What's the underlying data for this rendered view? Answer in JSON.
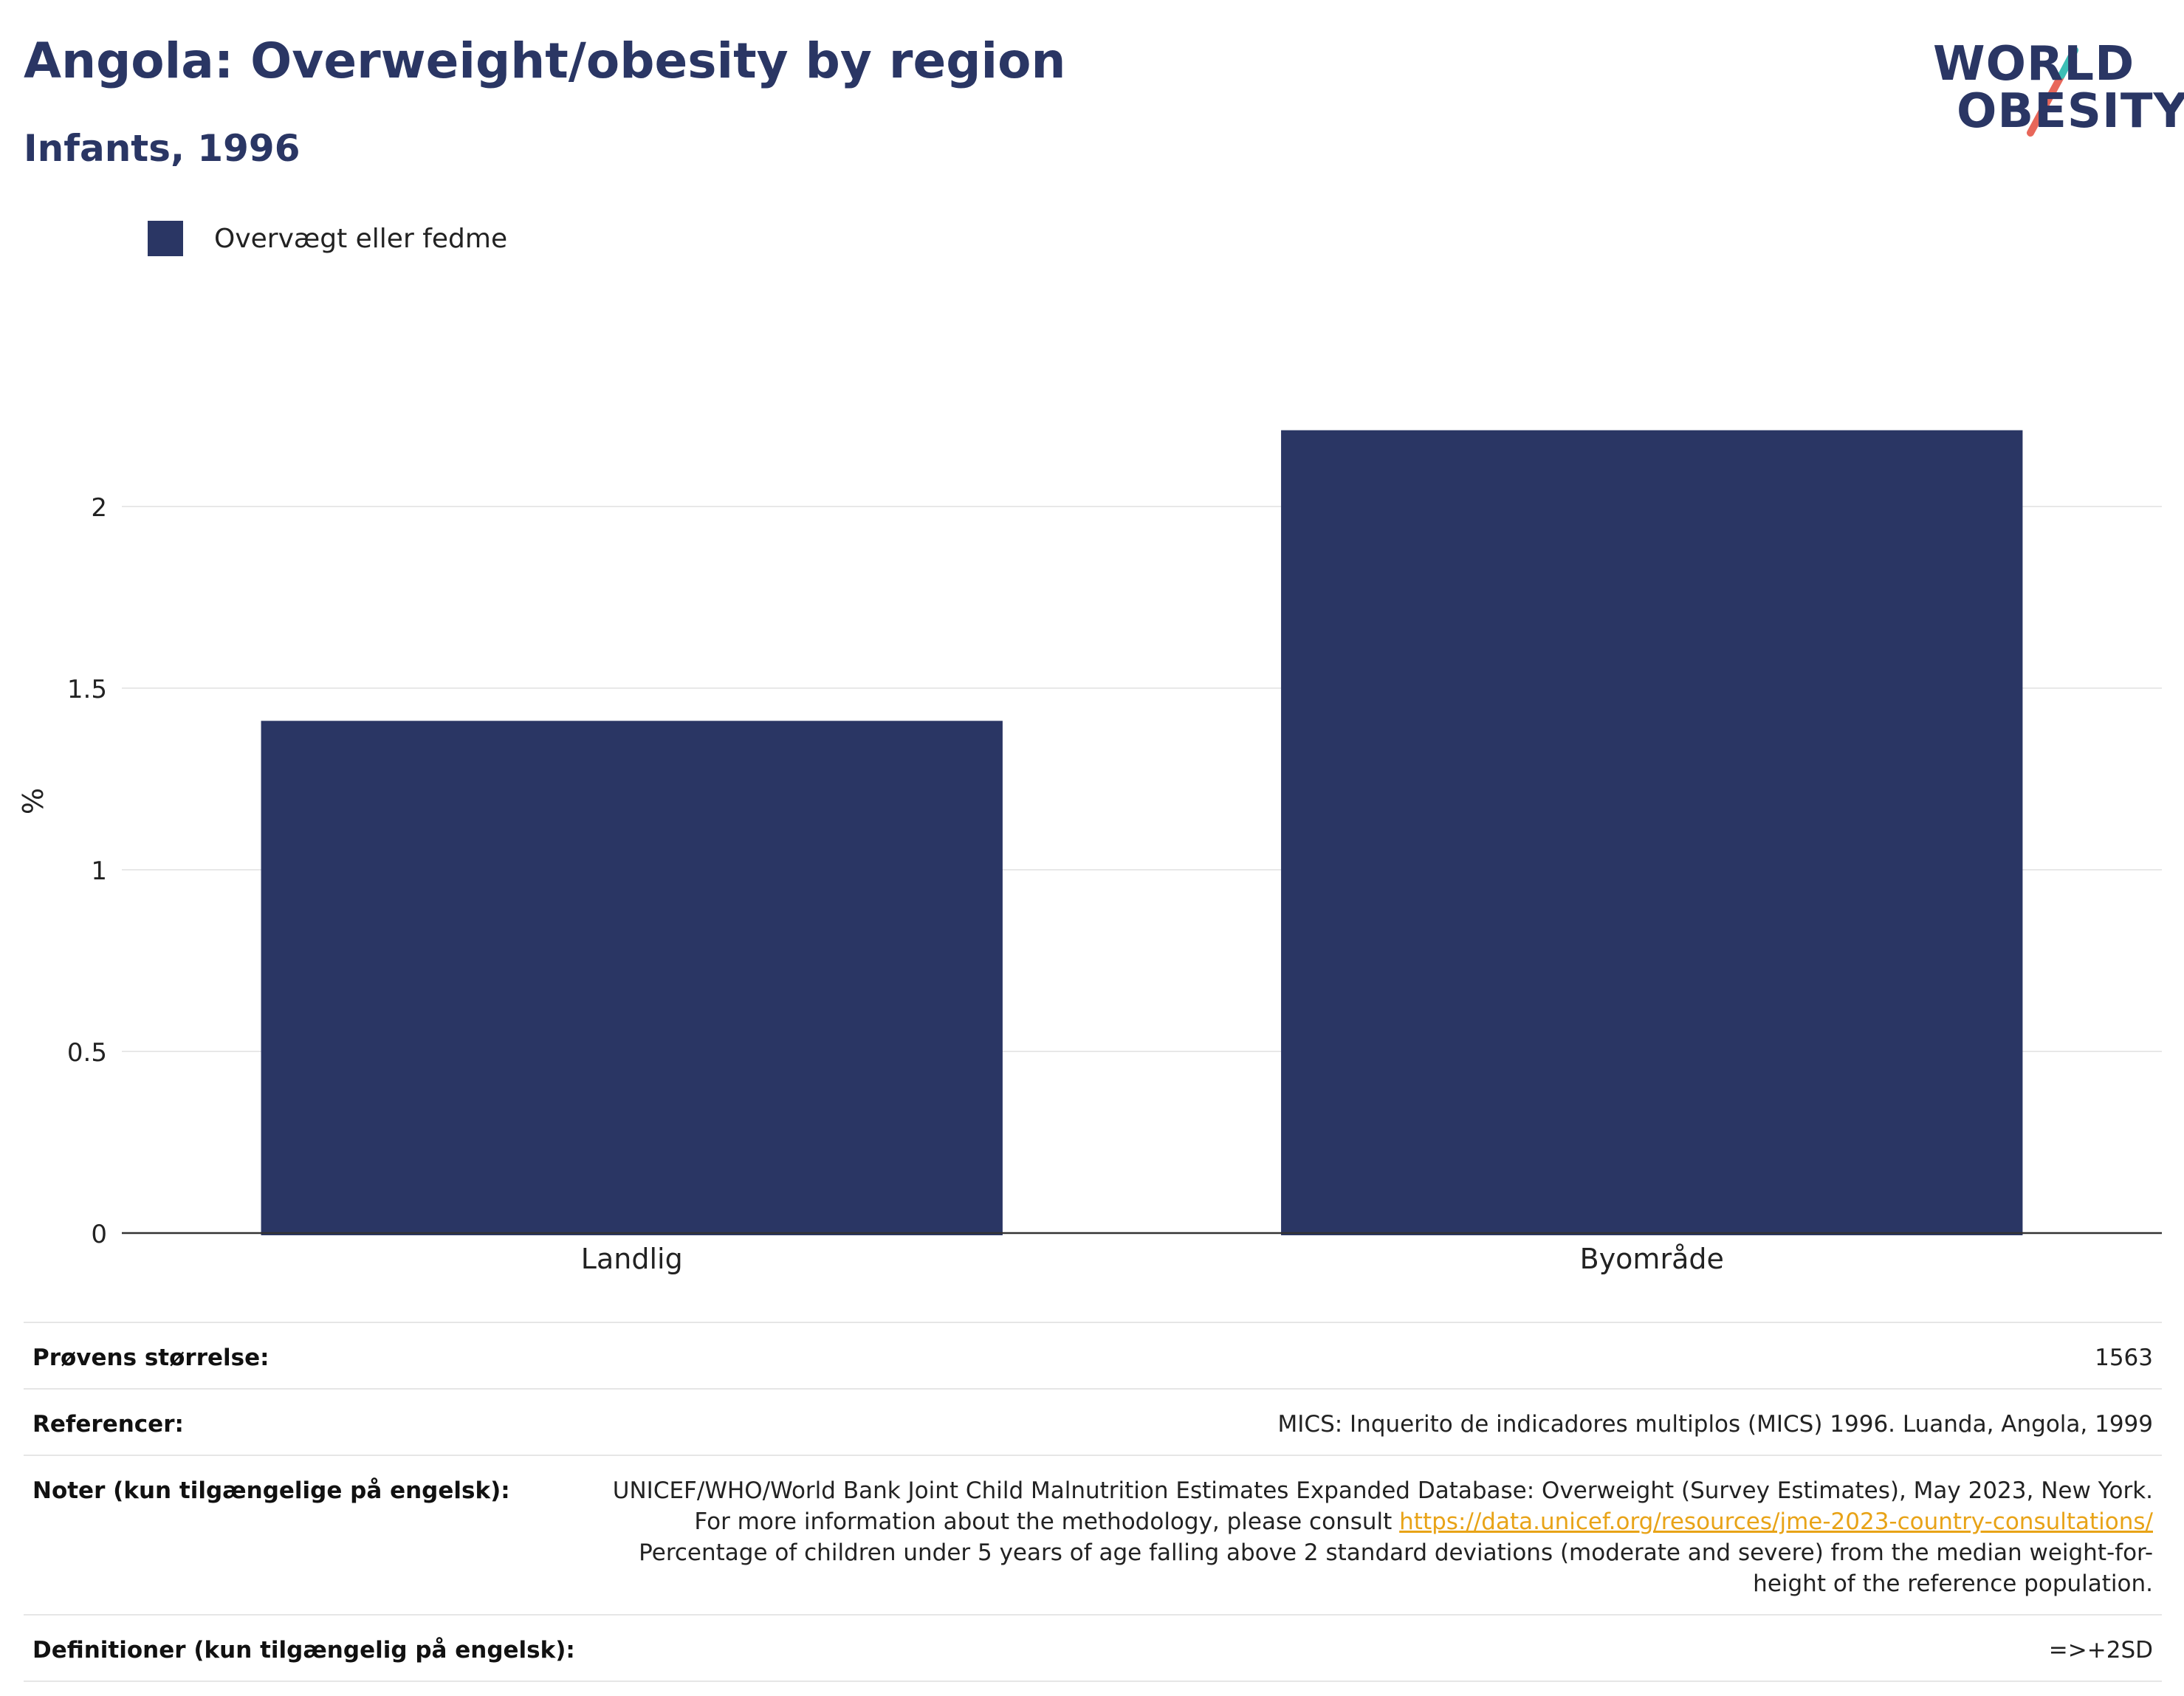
{
  "header": {
    "title": "Angola: Overweight/obesity by region",
    "subtitle": "Infants, 1996"
  },
  "logo": {
    "line1": "WORLD",
    "line2": "OBESITY",
    "accent_teal": "#3cbfb5",
    "accent_coral": "#e8675a"
  },
  "colors": {
    "bar": "#2a3664",
    "title": "#2a3664",
    "link": "#e8a317"
  },
  "chart_data": {
    "type": "bar",
    "categories": [
      "Landlig",
      "Byområde"
    ],
    "series": [
      {
        "name": "Overvægt eller fedme",
        "values": [
          1.41,
          2.21
        ]
      }
    ],
    "ylabel": "%",
    "xlabel": "",
    "ylim": [
      0,
      2.5
    ],
    "yticks": [
      0,
      0.5,
      1,
      1.5,
      2
    ],
    "ytick_labels": [
      "0",
      "0.5",
      "1",
      "1.5",
      "2"
    ],
    "grid": true,
    "legend_position": "top-left"
  },
  "info": {
    "sample_size": {
      "label": "Prøvens størrelse:",
      "value": "1563"
    },
    "references": {
      "label": "Referencer:",
      "value": "MICS: Inquerito de indicadores multiplos (MICS) 1996. Luanda, Angola, 1999"
    },
    "notes": {
      "label": "Noter (kun tilgængelige på engelsk):",
      "text1": "UNICEF/WHO/World Bank Joint Child Malnutrition Estimates Expanded Database: Overweight (Survey Estimates), May 2023, New York. For more information about the methodology, please consult",
      "link": "https://data.unicef.org/resources/jme-2023-country-consultations/",
      "text2": "Percentage of children under 5 years of age falling above 2 standard deviations (moderate and severe) from the median weight-for-height of the reference population."
    },
    "definitions": {
      "label": "Definitioner (kun tilgængelig på engelsk):",
      "value": "=>+2SD"
    }
  }
}
